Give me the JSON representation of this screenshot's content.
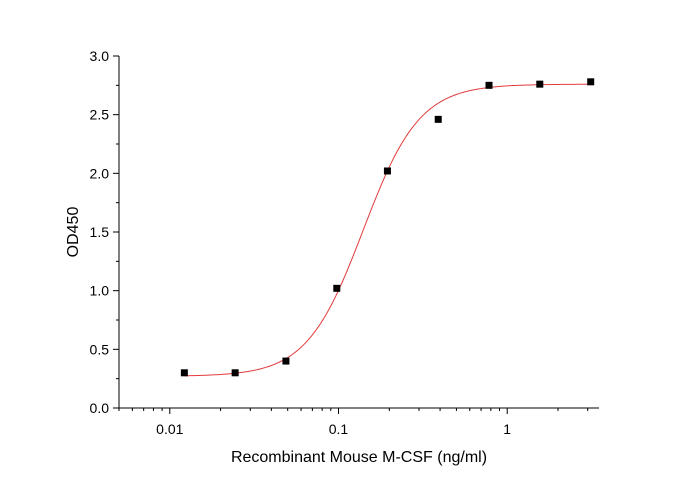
{
  "chart_data": {
    "type": "scatter",
    "xlabel": "Recombinant Mouse M-CSF (ng/ml)",
    "ylabel": "OD450",
    "x_scale": "log",
    "xlim": [
      0.005,
      3.5
    ],
    "ylim": [
      0,
      3.0
    ],
    "x_ticks": [
      {
        "value": 0.01,
        "label": "0.01"
      },
      {
        "value": 0.1,
        "label": "0.1"
      },
      {
        "value": 1,
        "label": "1"
      }
    ],
    "y_ticks": [
      {
        "value": 0.0,
        "label": "0.0"
      },
      {
        "value": 0.5,
        "label": "0.5"
      },
      {
        "value": 1.0,
        "label": "1.0"
      },
      {
        "value": 1.5,
        "label": "1.5"
      },
      {
        "value": 2.0,
        "label": "2.0"
      },
      {
        "value": 2.5,
        "label": "2.5"
      },
      {
        "value": 3.0,
        "label": "3.0"
      }
    ],
    "points": {
      "x": [
        0.0122,
        0.0244,
        0.0488,
        0.0977,
        0.195,
        0.39,
        0.78,
        1.56,
        3.125
      ],
      "y": [
        0.3,
        0.3,
        0.4,
        1.02,
        2.02,
        2.46,
        2.75,
        2.76,
        2.78
      ]
    },
    "fit": {
      "model": "four-parameter logistic",
      "bottom": 0.27,
      "top": 2.76,
      "ec50": 0.14,
      "hill": 2.6
    },
    "grid": false,
    "legend": "none",
    "colors": {
      "points": "#000000",
      "fit_line": "#e23b3b",
      "axes": "#000000"
    }
  }
}
